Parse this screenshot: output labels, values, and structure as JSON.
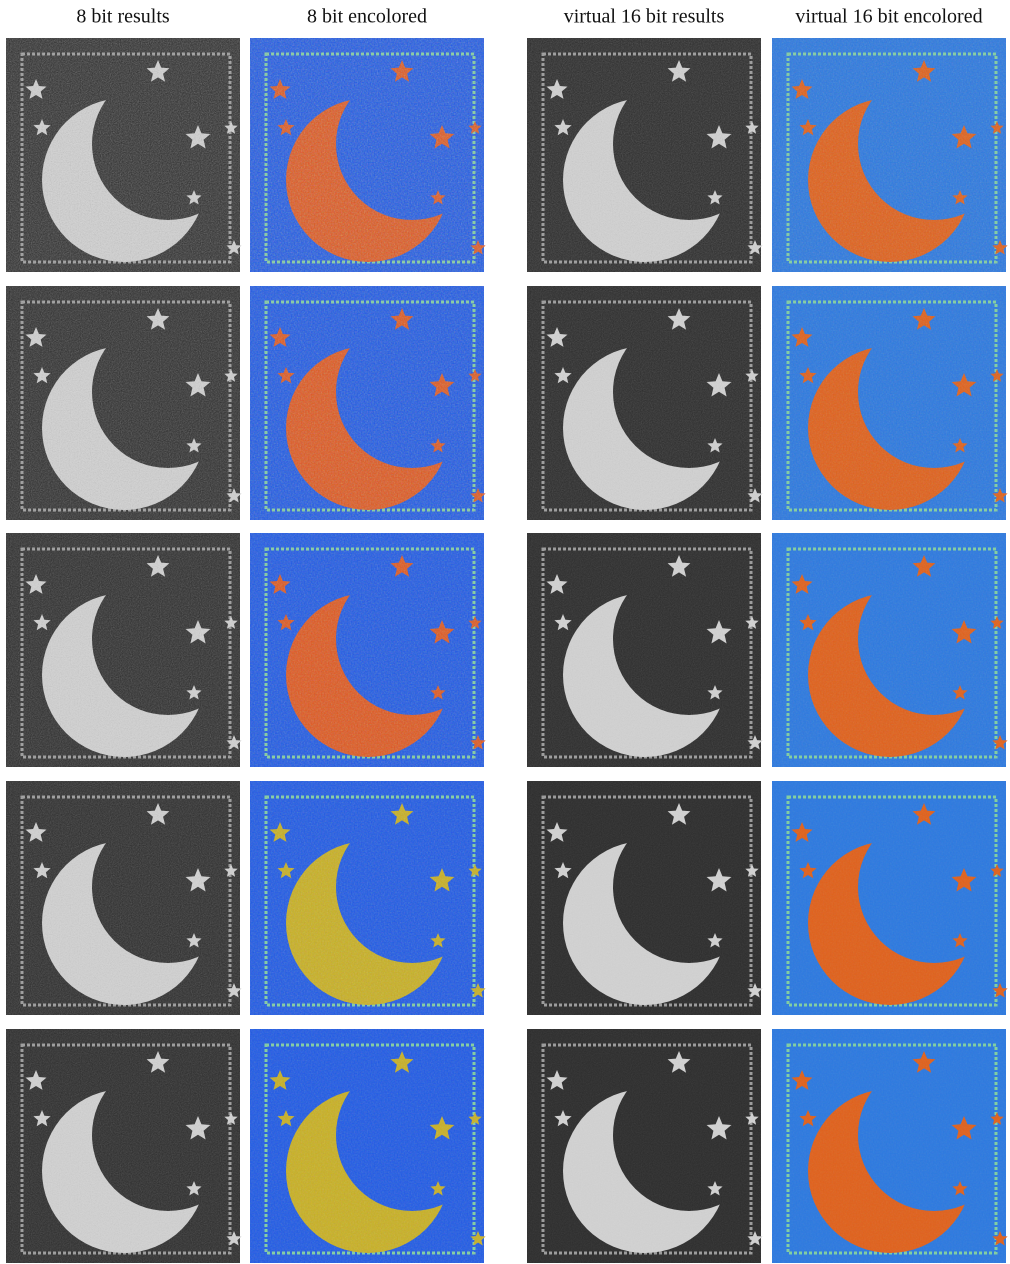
{
  "columns": [
    "8 bit results",
    "8 bit encolored",
    "virtual 16 bit results",
    "virtual 16 bit encolored"
  ]
}
